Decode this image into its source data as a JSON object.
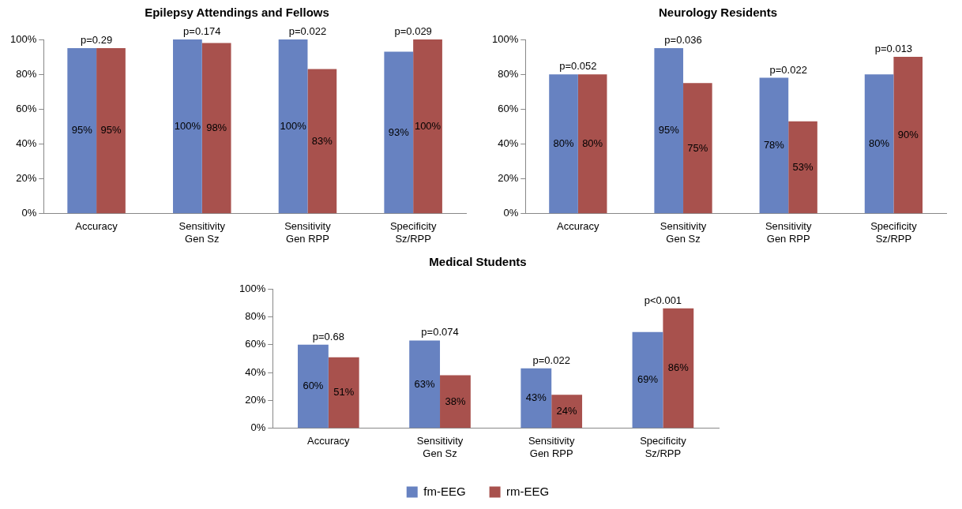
{
  "chart_data": [
    {
      "type": "bar",
      "title": "Epilepsy Attendings and Fellows",
      "categories": [
        "Accuracy",
        "Sensitivity\nGen Sz",
        "Sensitivity\nGen RPP",
        "Specificity\nSz/RPP"
      ],
      "series": [
        {
          "color": "#6782c1",
          "values": [
            95,
            100,
            100,
            93
          ],
          "value_labels": [
            "95%",
            "100%",
            "100%",
            "93%"
          ]
        },
        {
          "color": "#a8514d",
          "values": [
            95,
            98,
            83,
            100
          ],
          "value_labels": [
            "95%",
            "98%",
            "83%",
            "100%"
          ]
        }
      ],
      "ylim": [
        0,
        100
      ],
      "yticks": [
        {
          "value": 0,
          "label": "0%"
        },
        {
          "value": 20,
          "label": "20%"
        },
        {
          "value": 40,
          "label": "40%"
        },
        {
          "value": 60,
          "label": "60%"
        },
        {
          "value": 80,
          "label": "80%"
        },
        {
          "value": 100,
          "label": "100%"
        }
      ],
      "grid": false,
      "legend": false,
      "annotations": [
        {
          "text": "p=0.29",
          "x": "Accuracy",
          "y": 95
        },
        {
          "text": "p=0.174",
          "x": "Sensitivity\nGen Sz",
          "y": 100
        },
        {
          "text": "p=0.022",
          "x": "Sensitivity\nGen RPP",
          "y": 100
        },
        {
          "text": "p=0.029",
          "x": "Specificity\nSz/RPP",
          "y": 100
        }
      ]
    },
    {
      "type": "bar",
      "title": "Neurology Residents",
      "categories": [
        "Accuracy",
        "Sensitivity\nGen Sz",
        "Sensitivity\nGen RPP",
        "Specificity\nSz/RPP"
      ],
      "series": [
        {
          "color": "#6782c1",
          "values": [
            80,
            95,
            78,
            80
          ],
          "value_labels": [
            "80%",
            "95%",
            "78%",
            "80%"
          ]
        },
        {
          "color": "#a8514d",
          "values": [
            80,
            75,
            53,
            90
          ],
          "value_labels": [
            "80%",
            "75%",
            "53%",
            "90%"
          ]
        }
      ],
      "ylim": [
        0,
        100
      ],
      "yticks": [
        {
          "value": 0,
          "label": "0%"
        },
        {
          "value": 20,
          "label": "20%"
        },
        {
          "value": 40,
          "label": "40%"
        },
        {
          "value": 60,
          "label": "60%"
        },
        {
          "value": 80,
          "label": "80%"
        },
        {
          "value": 100,
          "label": "100%"
        }
      ],
      "grid": false,
      "legend": false,
      "annotations": [
        {
          "text": "p=0.052",
          "x": "Accuracy",
          "y": 80
        },
        {
          "text": "p=0.036",
          "x": "Sensitivity\nGen Sz",
          "y": 95
        },
        {
          "text": "p=0.022",
          "x": "Sensitivity\nGen RPP",
          "y": 78
        },
        {
          "text": "p=0.013",
          "x": "Specificity\nSz/RPP",
          "y": 90
        }
      ]
    },
    {
      "type": "bar",
      "title": "Medical Students",
      "categories": [
        "Accuracy",
        "Sensitivity\nGen Sz",
        "Sensitivity\nGen RPP",
        "Specificity\nSz/RPP"
      ],
      "series": [
        {
          "name": "fm-EEG",
          "color": "#6782c1",
          "values": [
            60,
            63,
            43,
            69
          ],
          "value_labels": [
            "60%",
            "63%",
            "43%",
            "69%"
          ]
        },
        {
          "name": "rm-EEG",
          "color": "#a8514d",
          "values": [
            51,
            38,
            24,
            86
          ],
          "value_labels": [
            "51%",
            "38%",
            "24%",
            "86%"
          ]
        }
      ],
      "ylim": [
        0,
        100
      ],
      "yticks": [
        {
          "value": 0,
          "label": "0%"
        },
        {
          "value": 20,
          "label": "20%"
        },
        {
          "value": 40,
          "label": "40%"
        },
        {
          "value": 60,
          "label": "60%"
        },
        {
          "value": 80,
          "label": "80%"
        },
        {
          "value": 100,
          "label": "100%"
        }
      ],
      "grid": false,
      "legend": "bottom",
      "annotations": [
        {
          "text": "p=0.68",
          "x": "Accuracy",
          "y": 60
        },
        {
          "text": "p=0.074",
          "x": "Sensitivity\nGen Sz",
          "y": 63
        },
        {
          "text": "p=0.022",
          "x": "Sensitivity\nGen RPP",
          "y": 43
        },
        {
          "text": "p<0.001",
          "x": "Specificity\nSz/RPP",
          "y": 86
        }
      ]
    }
  ]
}
